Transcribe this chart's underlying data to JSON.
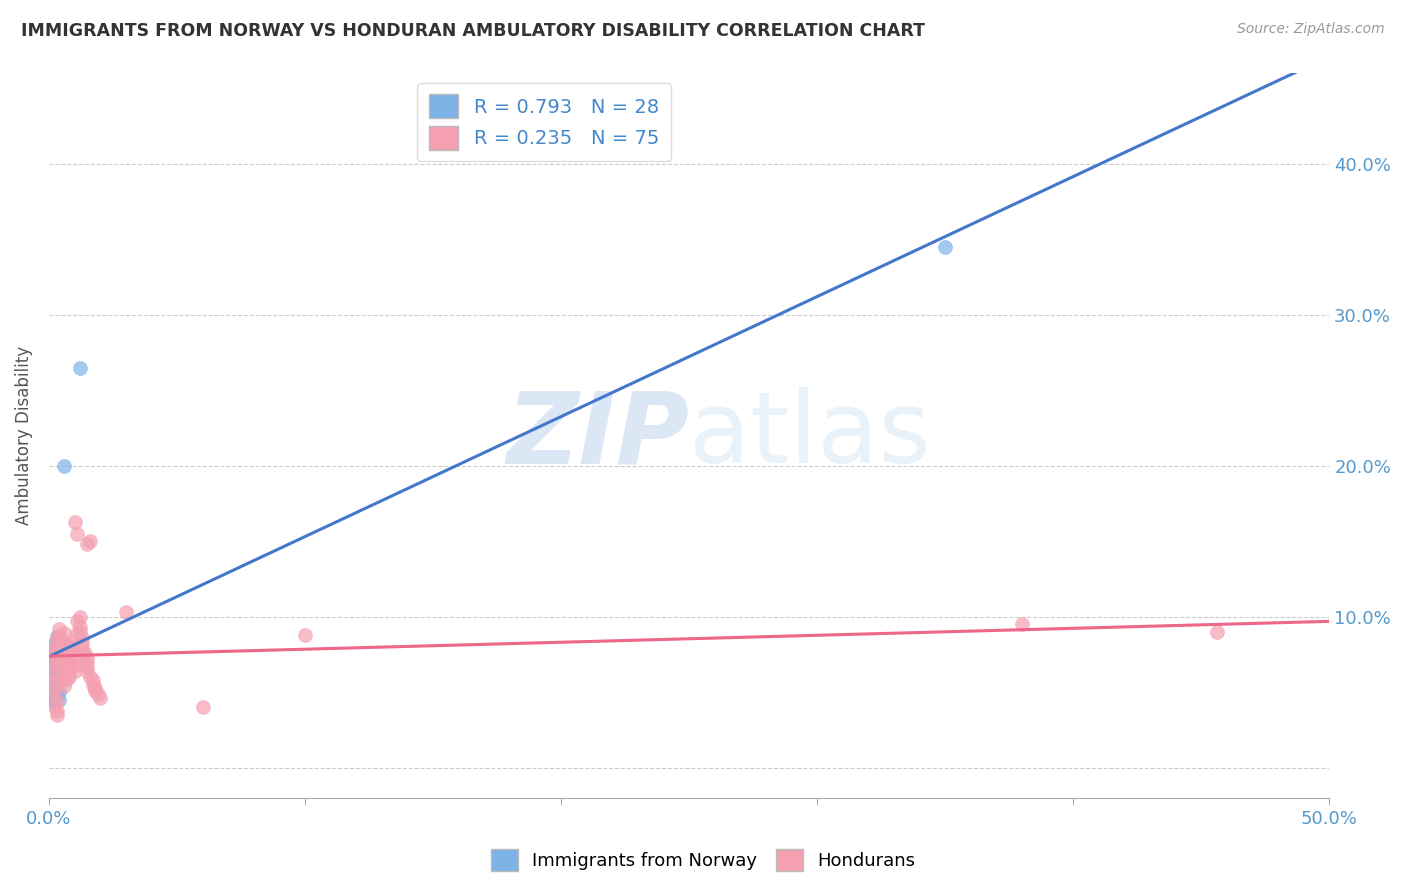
{
  "title": "IMMIGRANTS FROM NORWAY VS HONDURAN AMBULATORY DISABILITY CORRELATION CHART",
  "source": "Source: ZipAtlas.com",
  "ylabel": "Ambulatory Disability",
  "xlim": [
    0.0,
    0.5
  ],
  "ylim": [
    -0.02,
    0.46
  ],
  "norway_R": 0.793,
  "norway_N": 28,
  "honduran_R": 0.235,
  "honduran_N": 75,
  "norway_color": "#7EB3E8",
  "honduran_color": "#F4A0B0",
  "norway_line_color": "#4477CC",
  "honduran_line_color": "#EE6688",
  "norway_scatter": [
    [
      0.001,
      0.079
    ],
    [
      0.002,
      0.082
    ],
    [
      0.002,
      0.073
    ],
    [
      0.001,
      0.068
    ],
    [
      0.003,
      0.076
    ],
    [
      0.002,
      0.071
    ],
    [
      0.003,
      0.081
    ],
    [
      0.001,
      0.064
    ],
    [
      0.001,
      0.059
    ],
    [
      0.003,
      0.074
    ],
    [
      0.004,
      0.082
    ],
    [
      0.003,
      0.087
    ],
    [
      0.004,
      0.079
    ],
    [
      0.005,
      0.075
    ],
    [
      0.002,
      0.06
    ],
    [
      0.001,
      0.055
    ],
    [
      0.001,
      0.052
    ],
    [
      0.002,
      0.05
    ],
    [
      0.001,
      0.047
    ],
    [
      0.001,
      0.044
    ],
    [
      0.004,
      0.05
    ],
    [
      0.003,
      0.048
    ],
    [
      0.002,
      0.046
    ],
    [
      0.001,
      0.044
    ],
    [
      0.006,
      0.2
    ],
    [
      0.012,
      0.265
    ],
    [
      0.35,
      0.345
    ],
    [
      0.004,
      0.045
    ]
  ],
  "honduran_scatter": [
    [
      0.002,
      0.075
    ],
    [
      0.002,
      0.079
    ],
    [
      0.003,
      0.082
    ],
    [
      0.003,
      0.086
    ],
    [
      0.002,
      0.071
    ],
    [
      0.003,
      0.068
    ],
    [
      0.001,
      0.063
    ],
    [
      0.002,
      0.058
    ],
    [
      0.002,
      0.053
    ],
    [
      0.002,
      0.049
    ],
    [
      0.003,
      0.044
    ],
    [
      0.002,
      0.041
    ],
    [
      0.003,
      0.038
    ],
    [
      0.003,
      0.035
    ],
    [
      0.004,
      0.079
    ],
    [
      0.005,
      0.075
    ],
    [
      0.005,
      0.072
    ],
    [
      0.006,
      0.069
    ],
    [
      0.006,
      0.065
    ],
    [
      0.007,
      0.062
    ],
    [
      0.007,
      0.059
    ],
    [
      0.008,
      0.079
    ],
    [
      0.008,
      0.074
    ],
    [
      0.009,
      0.07
    ],
    [
      0.009,
      0.068
    ],
    [
      0.005,
      0.06
    ],
    [
      0.004,
      0.087
    ],
    [
      0.004,
      0.092
    ],
    [
      0.005,
      0.083
    ],
    [
      0.005,
      0.078
    ],
    [
      0.005,
      0.068
    ],
    [
      0.005,
      0.058
    ],
    [
      0.006,
      0.054
    ],
    [
      0.006,
      0.089
    ],
    [
      0.007,
      0.082
    ],
    [
      0.007,
      0.077
    ],
    [
      0.007,
      0.073
    ],
    [
      0.008,
      0.068
    ],
    [
      0.008,
      0.064
    ],
    [
      0.008,
      0.06
    ],
    [
      0.009,
      0.084
    ],
    [
      0.009,
      0.08
    ],
    [
      0.01,
      0.077
    ],
    [
      0.01,
      0.072
    ],
    [
      0.01,
      0.068
    ],
    [
      0.01,
      0.064
    ],
    [
      0.011,
      0.089
    ],
    [
      0.012,
      0.1
    ],
    [
      0.011,
      0.097
    ],
    [
      0.012,
      0.093
    ],
    [
      0.012,
      0.09
    ],
    [
      0.013,
      0.086
    ],
    [
      0.013,
      0.083
    ],
    [
      0.013,
      0.079
    ],
    [
      0.014,
      0.076
    ],
    [
      0.015,
      0.073
    ],
    [
      0.015,
      0.07
    ],
    [
      0.015,
      0.067
    ],
    [
      0.015,
      0.064
    ],
    [
      0.016,
      0.15
    ],
    [
      0.016,
      0.06
    ],
    [
      0.017,
      0.058
    ],
    [
      0.017,
      0.055
    ],
    [
      0.018,
      0.053
    ],
    [
      0.018,
      0.051
    ],
    [
      0.019,
      0.049
    ],
    [
      0.02,
      0.046
    ],
    [
      0.06,
      0.04
    ],
    [
      0.01,
      0.163
    ],
    [
      0.011,
      0.155
    ],
    [
      0.015,
      0.148
    ],
    [
      0.03,
      0.103
    ],
    [
      0.1,
      0.088
    ],
    [
      0.38,
      0.095
    ],
    [
      0.456,
      0.09
    ]
  ]
}
